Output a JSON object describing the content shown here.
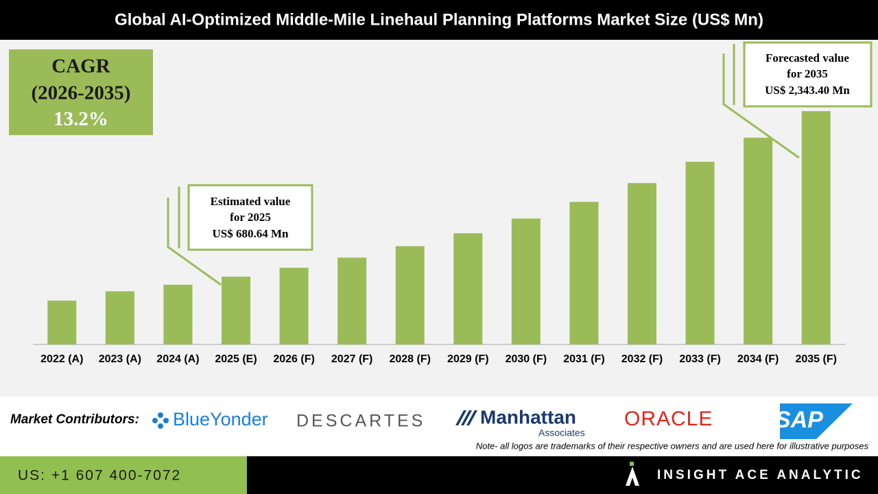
{
  "header": {
    "title": "Global AI-Optimized Middle-Mile Linehaul Planning Platforms Market Size (US$ Mn)"
  },
  "chart_data": {
    "type": "bar",
    "categories": [
      "2022 (A)",
      "2023 (A)",
      "2024 (A)",
      "2025 (E)",
      "2026 (F)",
      "2027 (F)",
      "2028 (F)",
      "2029 (F)",
      "2030 (F)",
      "2031 (F)",
      "2032 (F)",
      "2033 (F)",
      "2034 (F)",
      "2035 (F)"
    ],
    "values": [
      440,
      534,
      600,
      680.64,
      770,
      872,
      987,
      1117,
      1265,
      1432,
      1621,
      1835,
      2077,
      2343.4
    ],
    "color": "#9bbb59",
    "annotations": [
      {
        "lines": [
          "Estimated value",
          "for 2025",
          "US$ 680.64 Mn"
        ]
      },
      {
        "lines": [
          "Forecasted value",
          "for 2035",
          "US$ 2,343.40 Mn"
        ]
      }
    ]
  },
  "cagr": {
    "lines": [
      "CAGR",
      "(2026-2035)",
      "13.2%"
    ]
  },
  "contributors": {
    "label": "Market Contributors:",
    "logos": [
      "BlueYonder",
      "DESCARTES",
      "Manhattan",
      "Associates",
      "ORACLE",
      "SAP"
    ],
    "note": "Note- all logos are trademarks of their respective owners and are used here for illustrative purposes"
  },
  "footer": {
    "phone": "US: +1 607 400-7072",
    "brand": "INSIGHT ACE ANALYTIC"
  }
}
